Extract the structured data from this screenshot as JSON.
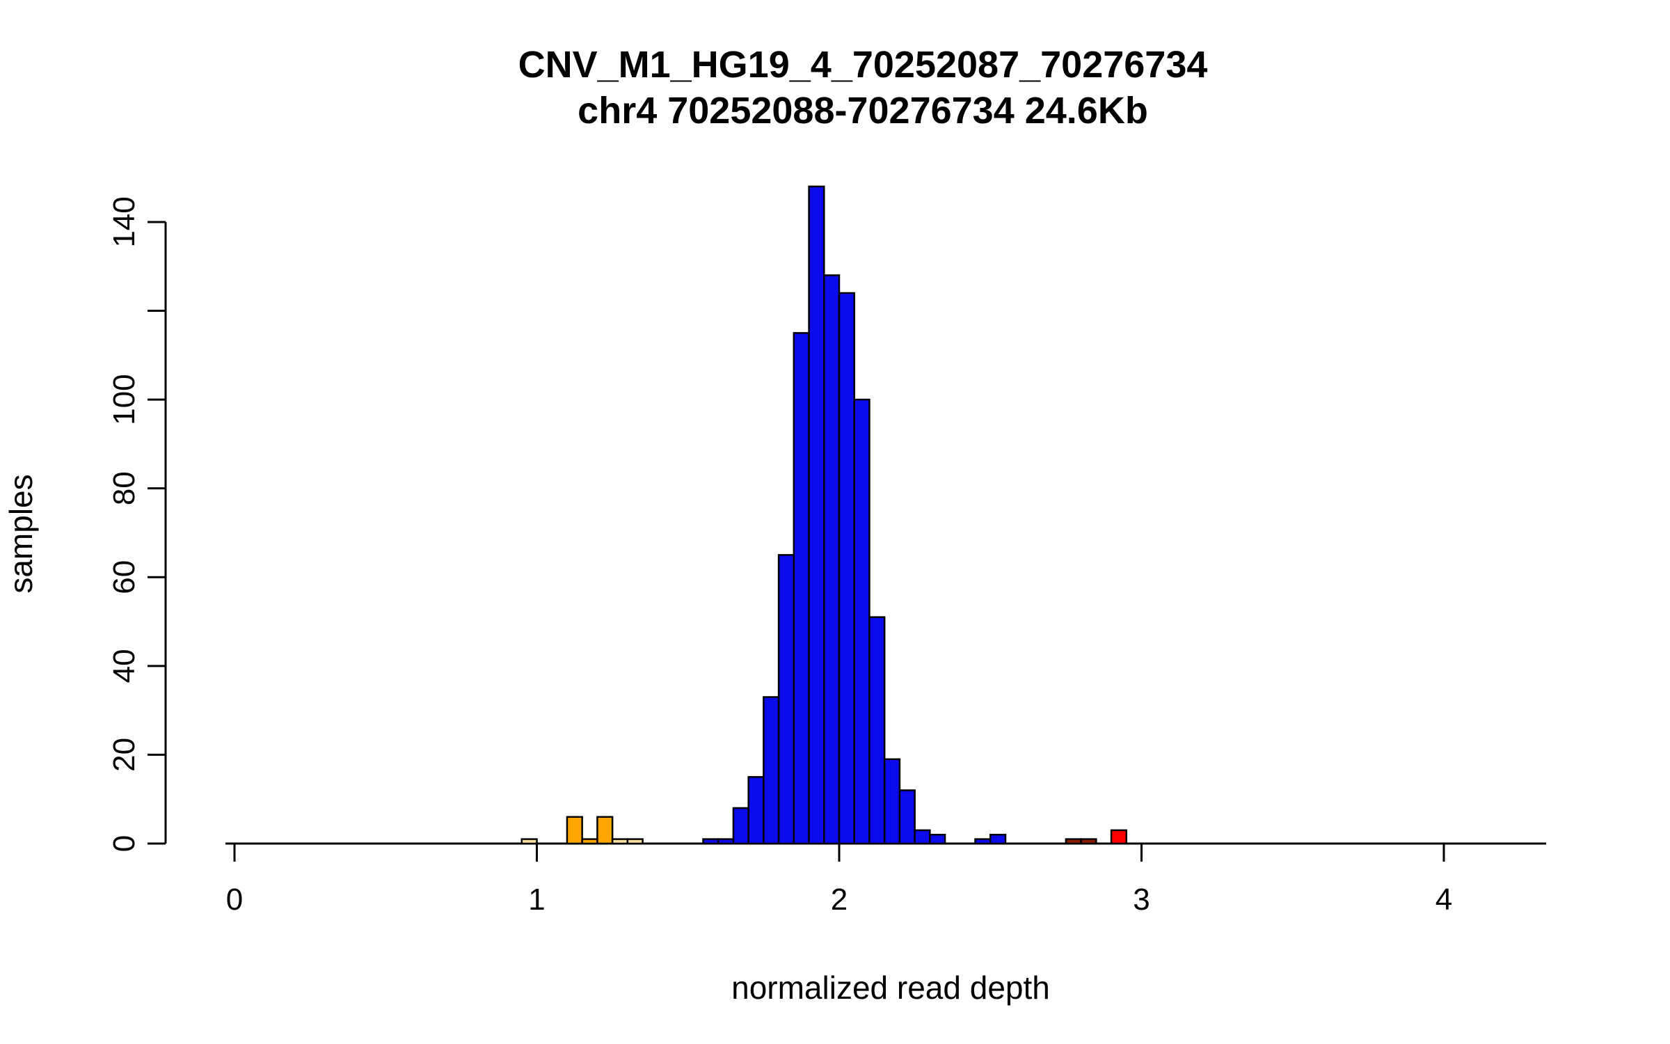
{
  "chart_data": {
    "type": "bar",
    "title": "CNV_M1_HG19_4_70252087_70276734",
    "subtitle": "chr4 70252088-70276734 24.6Kb",
    "xlabel": "normalized read depth",
    "ylabel": "samples",
    "xlim": [
      0,
      4.4
    ],
    "ylim": [
      0,
      150
    ],
    "x_ticks": [
      0,
      1,
      2,
      3,
      4
    ],
    "y_ticks": [
      0,
      20,
      40,
      60,
      80,
      100,
      120,
      140
    ],
    "y_tick_labels": [
      "0",
      "20",
      "40",
      "60",
      "80",
      "100",
      "",
      "140"
    ],
    "grid": false,
    "legend": "none",
    "bin_width": 0.05,
    "colors": {
      "blue": "#0B0BEE",
      "orange": "#FFA500",
      "lightorange": "#FFDFA0",
      "darkred": "#8B1A00",
      "red": "#FF0000",
      "axis": "#000000"
    },
    "bars": [
      {
        "x": 0.95,
        "count": 1,
        "color": "lightorange"
      },
      {
        "x": 1.1,
        "count": 6,
        "color": "orange"
      },
      {
        "x": 1.15,
        "count": 1,
        "color": "orange"
      },
      {
        "x": 1.2,
        "count": 6,
        "color": "orange"
      },
      {
        "x": 1.25,
        "count": 1,
        "color": "lightorange"
      },
      {
        "x": 1.3,
        "count": 1,
        "color": "lightorange"
      },
      {
        "x": 1.55,
        "count": 1,
        "color": "blue"
      },
      {
        "x": 1.6,
        "count": 1,
        "color": "blue"
      },
      {
        "x": 1.65,
        "count": 8,
        "color": "blue"
      },
      {
        "x": 1.7,
        "count": 15,
        "color": "blue"
      },
      {
        "x": 1.75,
        "count": 33,
        "color": "blue"
      },
      {
        "x": 1.8,
        "count": 65,
        "color": "blue"
      },
      {
        "x": 1.85,
        "count": 115,
        "color": "blue"
      },
      {
        "x": 1.9,
        "count": 148,
        "color": "blue"
      },
      {
        "x": 1.95,
        "count": 128,
        "color": "blue"
      },
      {
        "x": 2.0,
        "count": 124,
        "color": "blue"
      },
      {
        "x": 2.05,
        "count": 100,
        "color": "blue"
      },
      {
        "x": 2.1,
        "count": 51,
        "color": "blue"
      },
      {
        "x": 2.15,
        "count": 19,
        "color": "blue"
      },
      {
        "x": 2.2,
        "count": 12,
        "color": "blue"
      },
      {
        "x": 2.25,
        "count": 3,
        "color": "blue"
      },
      {
        "x": 2.3,
        "count": 2,
        "color": "blue"
      },
      {
        "x": 2.45,
        "count": 1,
        "color": "blue"
      },
      {
        "x": 2.5,
        "count": 2,
        "color": "blue"
      },
      {
        "x": 2.75,
        "count": 1,
        "color": "darkred"
      },
      {
        "x": 2.8,
        "count": 1,
        "color": "darkred"
      },
      {
        "x": 2.9,
        "count": 3,
        "color": "red"
      }
    ]
  }
}
